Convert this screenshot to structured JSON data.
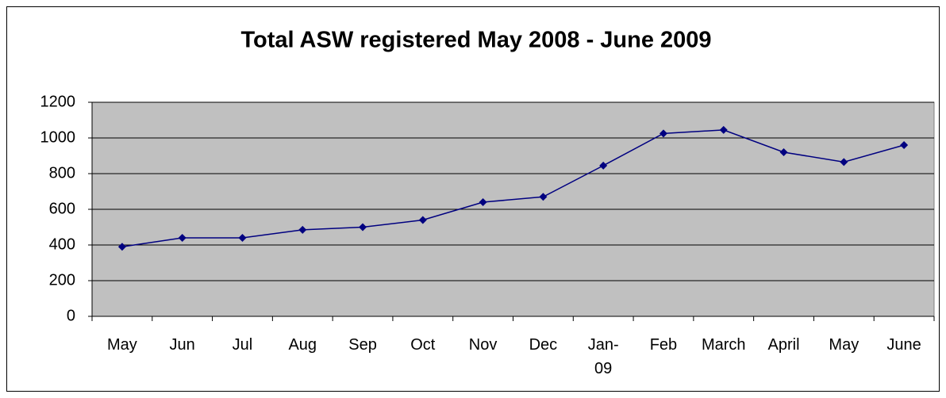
{
  "chart_data": {
    "type": "line",
    "title": "Total ASW registered May 2008 - June 2009",
    "categories": [
      "May",
      "Jun",
      "Jul",
      "Aug",
      "Sep",
      "Oct",
      "Nov",
      "Dec",
      "Jan-09",
      "Feb",
      "March",
      "April",
      "May",
      "June"
    ],
    "series": [
      {
        "color": "#000080",
        "values": [
          390,
          440,
          440,
          485,
          500,
          540,
          640,
          670,
          845,
          1025,
          1045,
          920,
          865,
          960
        ]
      }
    ],
    "ylim": [
      0,
      1200
    ],
    "yticks": [
      0,
      200,
      400,
      600,
      800,
      1000,
      1200
    ],
    "grid": true
  }
}
